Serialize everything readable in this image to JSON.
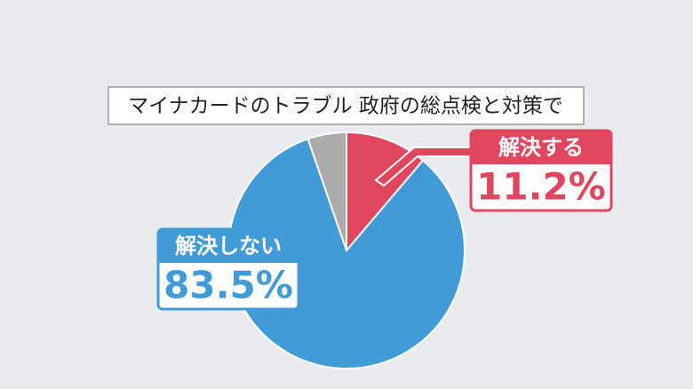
{
  "chart_data": {
    "type": "pie",
    "title": "マイナカードのトラブル 政府の総点検と対策で",
    "categories": [
      "解決する",
      "解決しない",
      null
    ],
    "values": [
      11.2,
      83.5,
      5.3
    ],
    "value_labels": [
      "11.2%",
      "83.5%",
      null
    ],
    "colors": [
      "#e0475f",
      "#409bd7",
      "#ababab"
    ]
  }
}
